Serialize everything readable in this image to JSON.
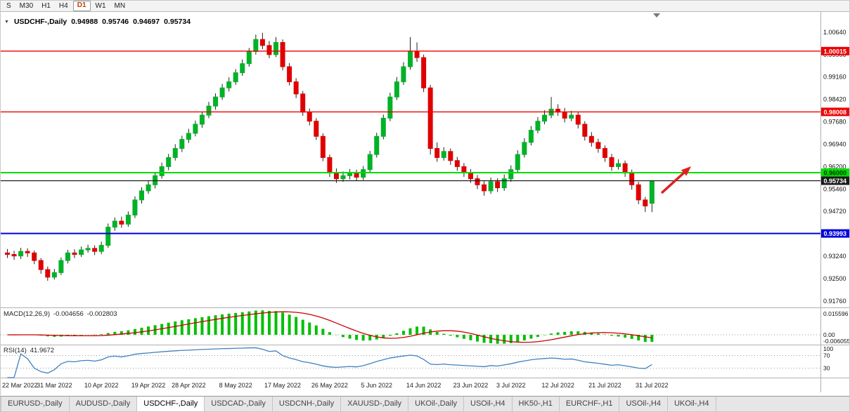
{
  "toolbar": {
    "timeframes": [
      "S",
      "M30",
      "H1",
      "H4",
      "D1",
      "W1",
      "MN"
    ],
    "active_index": 4
  },
  "chart": {
    "title": {
      "symbol": "USDCHF-,Daily",
      "open": "0.94988",
      "high": "0.95746",
      "low": "0.94697",
      "close": "0.95734"
    },
    "levels": [
      {
        "value": 1.00015,
        "label": "1.00015",
        "color": "#ee0000",
        "text_color": "#ffffff",
        "width": 1.4
      },
      {
        "value": 0.98008,
        "label": "0.98008",
        "color": "#ee0000",
        "text_color": "#ffffff",
        "width": 1.4
      },
      {
        "value": 0.96,
        "label": "0.96000",
        "color": "#00dd00",
        "text_color": "#003300",
        "width": 2
      },
      {
        "value": 0.95734,
        "label": "0.95734",
        "color": "#1a1a1a",
        "text_color": "#ffffff",
        "width": 1.2
      },
      {
        "value": 0.93993,
        "label": "0.93993",
        "color": "#0000dd",
        "text_color": "#ffffff",
        "width": 2
      }
    ]
  },
  "colors": {
    "bull": "#00b227",
    "bear": "#e00000",
    "wick": "#222222",
    "macd_hist": "#00c000",
    "macd_signal": "#cc0000",
    "rsi_line": "#4080c0",
    "grid_dotted": "#999999",
    "annotation_arrow": "#e02020",
    "separator": "#b0b0b0"
  },
  "indicators": {
    "macd": {
      "name": "MACD(12,26,9)",
      "value_main": "-0.004656",
      "value_signal": "-0.002803",
      "axis": [
        "0.015596",
        "0.00",
        "-0.006055"
      ]
    },
    "rsi": {
      "name": "RSI(14)",
      "value": "41.9672",
      "axis": [
        "100",
        "70",
        "30"
      ],
      "levels": [
        70,
        30
      ]
    }
  },
  "chart_data": {
    "type": "candlestick",
    "symbol": "USDCHF-",
    "timeframe": "Daily",
    "y_axis": [
      "1.00640",
      "0.99900",
      "0.99160",
      "0.98420",
      "0.97680",
      "0.96940",
      "0.96200",
      "0.95460",
      "0.94720",
      "0.93980",
      "0.93240",
      "0.92500",
      "0.91760"
    ],
    "y_range": [
      0.9155,
      1.011
    ],
    "x_labels": [
      "22 Mar 2022",
      "31 Mar 2022",
      "10 Apr 2022",
      "19 Apr 2022",
      "28 Apr 2022",
      "8 May 2022",
      "17 May 2022",
      "26 May 2022",
      "5 Jun 2022",
      "14 Jun 2022",
      "23 Jun 2022",
      "3 Jul 2022",
      "12 Jul 2022",
      "21 Jul 2022",
      "31 Jul 2022"
    ],
    "candles": [
      [
        0.9335,
        0.9348,
        0.9318,
        0.933
      ],
      [
        0.933,
        0.9342,
        0.9312,
        0.9325
      ],
      [
        0.9325,
        0.9352,
        0.9315,
        0.934
      ],
      [
        0.934,
        0.935,
        0.9322,
        0.9335
      ],
      [
        0.9335,
        0.9343,
        0.9298,
        0.931
      ],
      [
        0.931,
        0.9318,
        0.9266,
        0.928
      ],
      [
        0.928,
        0.929,
        0.9243,
        0.9255
      ],
      [
        0.9255,
        0.9282,
        0.9247,
        0.927
      ],
      [
        0.927,
        0.932,
        0.9262,
        0.931
      ],
      [
        0.931,
        0.9345,
        0.93,
        0.9335
      ],
      [
        0.9335,
        0.9347,
        0.9318,
        0.933
      ],
      [
        0.933,
        0.9356,
        0.9322,
        0.9345
      ],
      [
        0.9345,
        0.9362,
        0.9336,
        0.935
      ],
      [
        0.935,
        0.936,
        0.9328,
        0.934
      ],
      [
        0.934,
        0.9372,
        0.9331,
        0.936
      ],
      [
        0.936,
        0.9432,
        0.9352,
        0.942
      ],
      [
        0.942,
        0.9452,
        0.9408,
        0.944
      ],
      [
        0.944,
        0.9455,
        0.9418,
        0.943
      ],
      [
        0.943,
        0.9472,
        0.9421,
        0.946
      ],
      [
        0.946,
        0.9522,
        0.945,
        0.951
      ],
      [
        0.951,
        0.9552,
        0.9498,
        0.954
      ],
      [
        0.954,
        0.9574,
        0.953,
        0.956
      ],
      [
        0.956,
        0.9602,
        0.9548,
        0.959
      ],
      [
        0.959,
        0.9633,
        0.958,
        0.962
      ],
      [
        0.962,
        0.9662,
        0.9608,
        0.965
      ],
      [
        0.965,
        0.9694,
        0.964,
        0.968
      ],
      [
        0.968,
        0.9722,
        0.9668,
        0.971
      ],
      [
        0.971,
        0.9745,
        0.9698,
        0.973
      ],
      [
        0.973,
        0.9772,
        0.972,
        0.976
      ],
      [
        0.976,
        0.9802,
        0.9748,
        0.979
      ],
      [
        0.979,
        0.9834,
        0.978,
        0.982
      ],
      [
        0.982,
        0.9862,
        0.9808,
        0.985
      ],
      [
        0.985,
        0.9893,
        0.984,
        0.988
      ],
      [
        0.988,
        0.9915,
        0.9868,
        0.99
      ],
      [
        0.99,
        0.9942,
        0.989,
        0.993
      ],
      [
        0.993,
        0.9974,
        0.992,
        0.996
      ],
      [
        0.996,
        1.0012,
        0.995,
        1.0
      ],
      [
        1.0,
        1.0056,
        0.999,
        1.004
      ],
      [
        1.004,
        1.0062,
        1.0008,
        1.002
      ],
      [
        1.002,
        1.0035,
        0.9978,
        0.999
      ],
      [
        0.999,
        1.0048,
        0.9982,
        1.003
      ],
      [
        1.003,
        1.004,
        0.9938,
        0.995
      ],
      [
        0.995,
        0.9962,
        0.9888,
        0.99
      ],
      [
        0.99,
        0.9912,
        0.9846,
        0.986
      ],
      [
        0.986,
        0.987,
        0.9788,
        0.98
      ],
      [
        0.98,
        0.9812,
        0.9756,
        0.977
      ],
      [
        0.977,
        0.978,
        0.9708,
        0.972
      ],
      [
        0.972,
        0.973,
        0.9638,
        0.965
      ],
      [
        0.965,
        0.966,
        0.9586,
        0.96
      ],
      [
        0.96,
        0.9614,
        0.9566,
        0.958
      ],
      [
        0.958,
        0.9604,
        0.957,
        0.959
      ],
      [
        0.959,
        0.9612,
        0.9578,
        0.96
      ],
      [
        0.96,
        0.961,
        0.9572,
        0.9585
      ],
      [
        0.9585,
        0.9622,
        0.9576,
        0.961
      ],
      [
        0.961,
        0.9672,
        0.96,
        0.966
      ],
      [
        0.966,
        0.9732,
        0.965,
        0.972
      ],
      [
        0.972,
        0.9792,
        0.971,
        0.978
      ],
      [
        0.978,
        0.9864,
        0.977,
        0.985
      ],
      [
        0.985,
        0.9916,
        0.984,
        0.99
      ],
      [
        0.99,
        0.9965,
        0.989,
        0.995
      ],
      [
        0.995,
        1.0048,
        0.994,
        1.0
      ],
      [
        1.0,
        1.003,
        0.9966,
        0.998
      ],
      [
        0.998,
        0.999,
        0.9866,
        0.988
      ],
      [
        0.988,
        0.989,
        0.966,
        0.968
      ],
      [
        0.968,
        0.97,
        0.9636,
        0.965
      ],
      [
        0.965,
        0.9684,
        0.964,
        0.967
      ],
      [
        0.967,
        0.968,
        0.9626,
        0.964
      ],
      [
        0.964,
        0.9652,
        0.9606,
        0.962
      ],
      [
        0.962,
        0.9632,
        0.9586,
        0.96
      ],
      [
        0.96,
        0.9612,
        0.9566,
        0.958
      ],
      [
        0.958,
        0.9592,
        0.9546,
        0.956
      ],
      [
        0.956,
        0.9572,
        0.9524,
        0.954
      ],
      [
        0.954,
        0.9584,
        0.953,
        0.957
      ],
      [
        0.957,
        0.9582,
        0.9536,
        0.955
      ],
      [
        0.955,
        0.9594,
        0.954,
        0.958
      ],
      [
        0.958,
        0.9624,
        0.957,
        0.961
      ],
      [
        0.961,
        0.9674,
        0.96,
        0.966
      ],
      [
        0.966,
        0.9714,
        0.965,
        0.97
      ],
      [
        0.97,
        0.9754,
        0.969,
        0.974
      ],
      [
        0.974,
        0.9784,
        0.973,
        0.977
      ],
      [
        0.977,
        0.9806,
        0.976,
        0.979
      ],
      [
        0.979,
        0.985,
        0.978,
        0.981
      ],
      [
        0.981,
        0.9826,
        0.9788,
        0.98
      ],
      [
        0.98,
        0.9814,
        0.9766,
        0.978
      ],
      [
        0.978,
        0.9804,
        0.977,
        0.979
      ],
      [
        0.979,
        0.98,
        0.9746,
        0.976
      ],
      [
        0.976,
        0.977,
        0.9706,
        0.972
      ],
      [
        0.972,
        0.9734,
        0.9686,
        0.97
      ],
      [
        0.97,
        0.9712,
        0.9666,
        0.968
      ],
      [
        0.968,
        0.969,
        0.9636,
        0.965
      ],
      [
        0.965,
        0.9662,
        0.9606,
        0.962
      ],
      [
        0.962,
        0.9644,
        0.961,
        0.963
      ],
      [
        0.963,
        0.964,
        0.9586,
        0.96
      ],
      [
        0.96,
        0.961,
        0.9544,
        0.956
      ],
      [
        0.956,
        0.957,
        0.9496,
        0.951
      ],
      [
        0.951,
        0.952,
        0.947,
        0.949
      ],
      [
        0.94988,
        0.95746,
        0.94697,
        0.95734
      ]
    ]
  },
  "tabbar": {
    "tabs": [
      "EURUSD-,Daily",
      "AUDUSD-,Daily",
      "USDCHF-,Daily",
      "USDCAD-,Daily",
      "USDCNH-,Daily",
      "XAUUSD-,Daily",
      "UKOil-,Daily",
      "USOil-,H4",
      "HK50-,H1",
      "EURCHF-,H1",
      "USOil-,H4",
      "UKOil-,H4"
    ],
    "active_index": 2
  }
}
